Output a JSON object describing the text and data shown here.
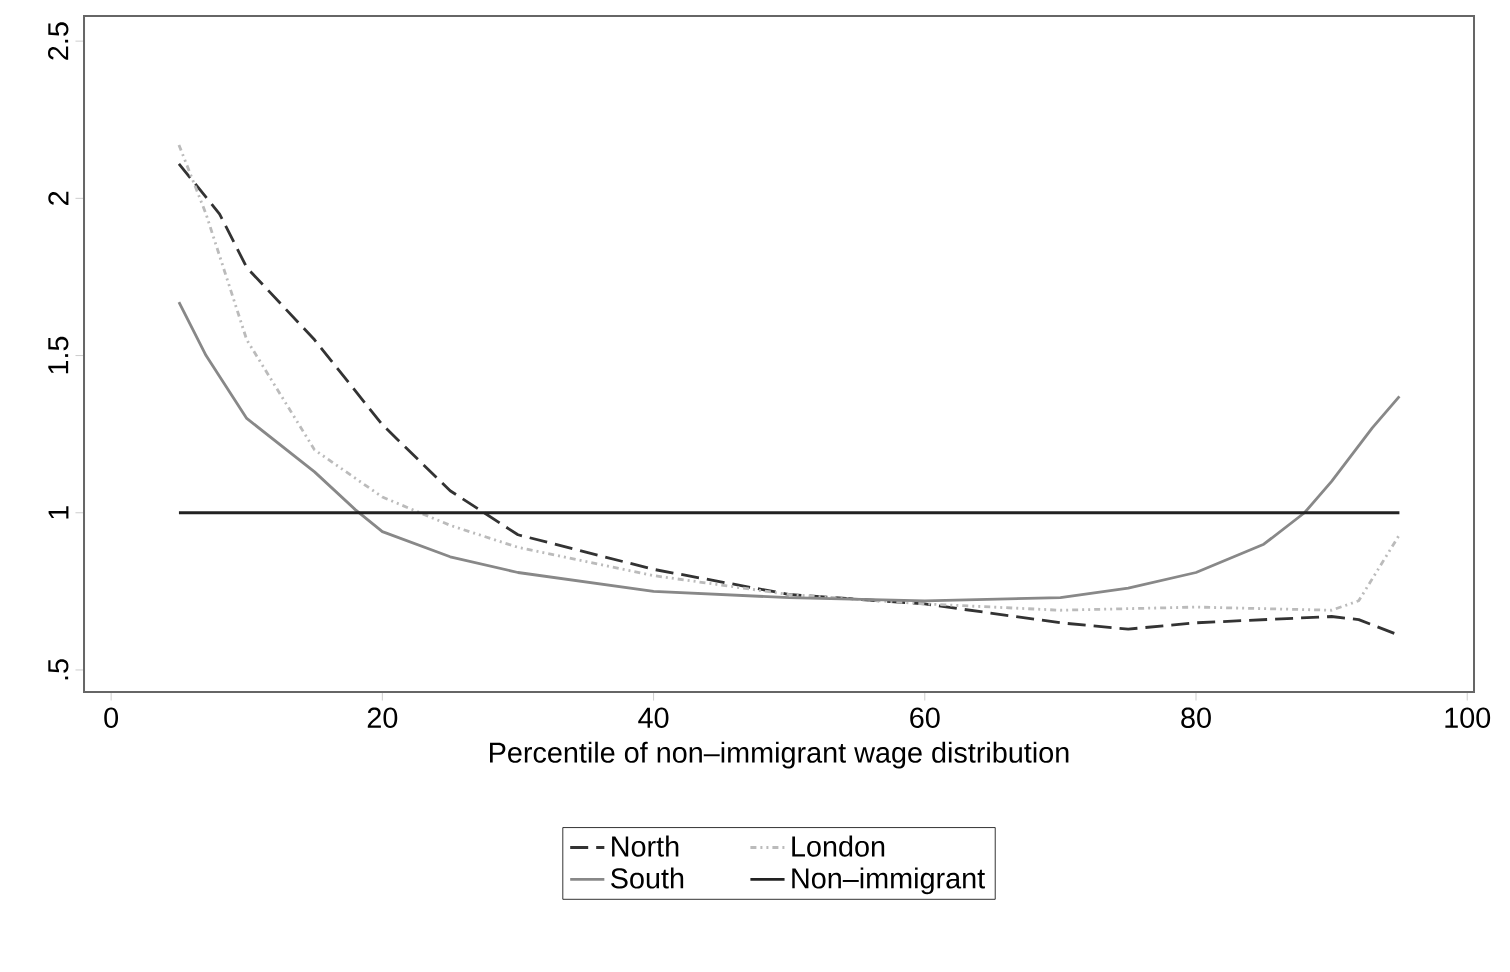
{
  "chart_data": {
    "type": "line",
    "xlabel": "Percentile of non–immigrant wage distribution",
    "xlim": [
      -2,
      100.5
    ],
    "ylim": [
      0.43,
      2.58
    ],
    "xticks": [
      0,
      20,
      40,
      60,
      80,
      100
    ],
    "yticks": [
      {
        "value": 0.5,
        "label": ".5"
      },
      1,
      1.5,
      2,
      2.5
    ],
    "grid": false,
    "legend": "bottom",
    "marker": "none",
    "series": [
      {
        "name": "North",
        "color": "#333333",
        "line_style": "dashed",
        "x": [
          5,
          8,
          10,
          15,
          20,
          25,
          30,
          40,
          50,
          60,
          65,
          70,
          75,
          80,
          85,
          90,
          92,
          95
        ],
        "values": [
          2.11,
          1.95,
          1.78,
          1.55,
          1.28,
          1.07,
          0.93,
          0.82,
          0.74,
          0.71,
          0.68,
          0.65,
          0.63,
          0.65,
          0.66,
          0.67,
          0.66,
          0.61
        ]
      },
      {
        "name": "London",
        "color": "#bbbbbb",
        "line_style": "dashdotdot",
        "x": [
          5,
          7,
          10,
          15,
          20,
          25,
          30,
          40,
          50,
          60,
          70,
          80,
          90,
          92,
          95
        ],
        "values": [
          2.17,
          1.95,
          1.55,
          1.2,
          1.05,
          0.96,
          0.89,
          0.8,
          0.74,
          0.71,
          0.69,
          0.7,
          0.69,
          0.72,
          0.93
        ]
      },
      {
        "name": "South",
        "color": "#888888",
        "line_style": "solid",
        "x": [
          5,
          7,
          10,
          15,
          18,
          20,
          25,
          30,
          40,
          50,
          60,
          70,
          75,
          80,
          85,
          88,
          90,
          93,
          95
        ],
        "values": [
          1.67,
          1.5,
          1.3,
          1.13,
          1.01,
          0.94,
          0.86,
          0.81,
          0.75,
          0.73,
          0.72,
          0.73,
          0.76,
          0.81,
          0.9,
          1.0,
          1.1,
          1.27,
          1.37
        ]
      },
      {
        "name": "Non–immigrant",
        "color": "#222222",
        "line_style": "solid",
        "x": [
          5,
          95
        ],
        "values": [
          1,
          1
        ]
      }
    ]
  }
}
